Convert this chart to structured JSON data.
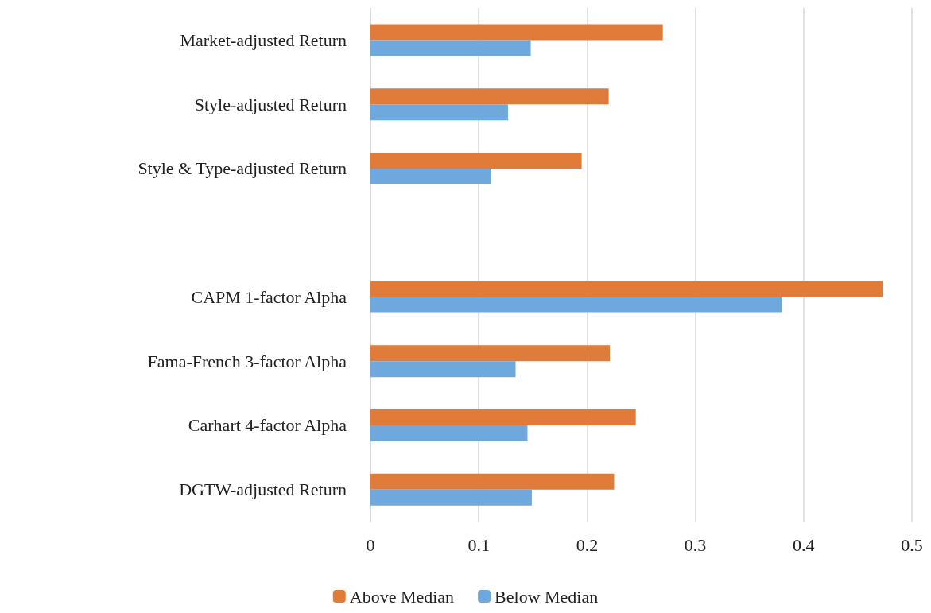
{
  "chart_data": {
    "type": "bar",
    "orientation": "horizontal",
    "categories": [
      "Market-adjusted Return",
      "Style-adjusted Return",
      "Style & Type-adjusted Return",
      null,
      "CAPM 1-factor Alpha",
      "Fama-French 3-factor Alpha",
      "Carhart 4-factor Alpha",
      "DGTW-adjusted Return"
    ],
    "series": [
      {
        "name": "Above Median",
        "color": "#e07b39",
        "values": [
          0.27,
          0.22,
          0.195,
          null,
          0.473,
          0.221,
          0.245,
          0.225
        ]
      },
      {
        "name": "Below Median",
        "color": "#6fa8dc",
        "values": [
          0.148,
          0.127,
          0.111,
          null,
          0.38,
          0.134,
          0.145,
          0.149
        ]
      }
    ],
    "xlim": [
      0,
      0.5
    ],
    "xticks": [
      0,
      0.1,
      0.2,
      0.3,
      0.4,
      0.5
    ],
    "grid": "x",
    "legend": "bottom"
  }
}
